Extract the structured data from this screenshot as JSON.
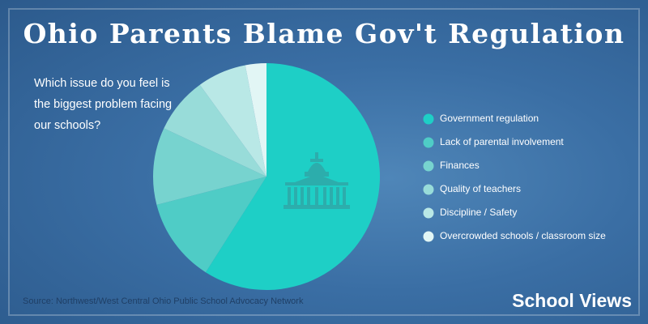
{
  "chart_data": {
    "type": "pie",
    "title": "Ohio Parents Blame Gov't Regulation",
    "subtitle": "Which issue do you feel is the biggest problem facing our schools?",
    "categories": [
      "Government regulation",
      "Lack of parental involvement",
      "Finances",
      "Quality of teachers",
      "Discipline / Safety",
      "Overcrowded schools / classroom size"
    ],
    "values": [
      59,
      12,
      11,
      8,
      7,
      3
    ],
    "colors": [
      "#1ecfc6",
      "#4fccc6",
      "#77d3cf",
      "#98dcd9",
      "#b9e8e6",
      "#e2f6f5"
    ],
    "source": "Source: Northwest/West Central Ohio Public School Advocacy Network"
  },
  "brand": "School Views"
}
